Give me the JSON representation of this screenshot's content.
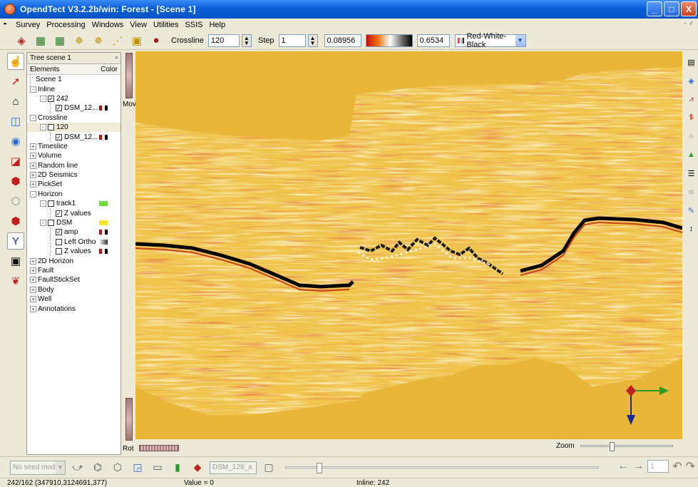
{
  "window": {
    "title": "OpendTect V3.2.2b/win: Forest - [Scene 1]",
    "controls": {
      "minimize": "_",
      "maximize": "□",
      "close": "X"
    }
  },
  "menu": {
    "items": [
      "Survey",
      "Processing",
      "Windows",
      "View",
      "Utilities",
      "SSIS",
      "Help"
    ],
    "mdi_controls": "- ♂"
  },
  "toolbar": {
    "crossline_label": "Crossline",
    "crossline_value": "120",
    "step_label": "Step",
    "step_value": "1",
    "range_min": "0.08956",
    "range_max": "0.6534",
    "colortable": "Red-White-Black"
  },
  "tree": {
    "header": "Tree scene 1",
    "col_elements": "Elements",
    "col_color": "Color",
    "rows": [
      {
        "depth": 0,
        "label": "Scene 1",
        "exp": "",
        "cb": ""
      },
      {
        "depth": 0,
        "label": "Inline",
        "exp": "-",
        "cb": ""
      },
      {
        "depth": 1,
        "label": "242",
        "exp": "-",
        "cb": "✓"
      },
      {
        "depth": 2,
        "label": "DSM_12...",
        "exp": "",
        "cb": "✓",
        "mini": "rwb"
      },
      {
        "depth": 0,
        "label": "Crossline",
        "exp": "-",
        "cb": ""
      },
      {
        "depth": 1,
        "label": "120",
        "exp": "-",
        "cb": " ",
        "sel": true
      },
      {
        "depth": 2,
        "label": "DSM_12...",
        "exp": "",
        "cb": "✓",
        "mini": "rwb"
      },
      {
        "depth": 0,
        "label": "Timeslice",
        "exp": "+",
        "cb": ""
      },
      {
        "depth": 0,
        "label": "Volume",
        "exp": "+",
        "cb": ""
      },
      {
        "depth": 0,
        "label": "Random line",
        "exp": "+",
        "cb": ""
      },
      {
        "depth": 0,
        "label": "2D Seismics",
        "exp": "+",
        "cb": ""
      },
      {
        "depth": 0,
        "label": "PickSet",
        "exp": "+",
        "cb": ""
      },
      {
        "depth": 0,
        "label": "Horizon",
        "exp": "-",
        "cb": ""
      },
      {
        "depth": 1,
        "label": "track1",
        "exp": "-",
        "cb": " ",
        "mini": "green"
      },
      {
        "depth": 2,
        "label": "Z values",
        "exp": "",
        "cb": "✓"
      },
      {
        "depth": 1,
        "label": "DSM",
        "exp": "-",
        "cb": " ",
        "mini": "yellow"
      },
      {
        "depth": 2,
        "label": "amp",
        "exp": "",
        "cb": "✓",
        "mini": "rwb"
      },
      {
        "depth": 2,
        "label": "Left Ortho",
        "exp": "",
        "cb": " ",
        "mini": "grey"
      },
      {
        "depth": 2,
        "label": "Z values",
        "exp": "",
        "cb": " ",
        "mini": "rwb"
      },
      {
        "depth": 0,
        "label": "2D Horizon",
        "exp": "+",
        "cb": ""
      },
      {
        "depth": 0,
        "label": "Fault",
        "exp": "+",
        "cb": ""
      },
      {
        "depth": 0,
        "label": "FaultStickSet",
        "exp": "+",
        "cb": ""
      },
      {
        "depth": 0,
        "label": "Body",
        "exp": "+",
        "cb": ""
      },
      {
        "depth": 0,
        "label": "Well",
        "exp": "+",
        "cb": ""
      },
      {
        "depth": 0,
        "label": "Annotations",
        "exp": "+",
        "cb": ""
      }
    ]
  },
  "viewer": {
    "mov_label": "Mov",
    "rot_label": "Rot",
    "zoom_label": "Zoom",
    "zoom_level": 0.33
  },
  "right_tools": [
    "Man",
    "Ma",
    "Ma",
    "Ma",
    "Ma",
    "Ma",
    "Ma",
    "Man",
    "",
    "↕"
  ],
  "bottom": {
    "seed_mode": "No seed mode",
    "attribute": "DSM_128_a",
    "spin_value": "1",
    "slider_level": 0.1
  },
  "status": {
    "position": "242/162  (347910,3124691,377)",
    "value": "Value = 0",
    "inline": "Inline: 242"
  },
  "colors": {
    "background": "#e8b73a",
    "horizon": "#000000",
    "accent_red": "#c8401a"
  }
}
